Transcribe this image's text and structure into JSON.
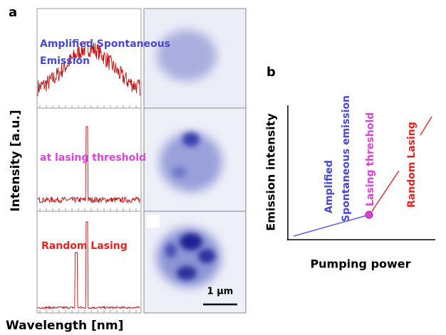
{
  "panel_a": {
    "label": "a",
    "y_axis_label": "Intensity [a.u.]",
    "x_axis_label": "Wavelength [nm]",
    "spectra": [
      {
        "label_lines": [
          "Amplified Spontaneous",
          "Emission"
        ]
      },
      {
        "label": "at lasing threshold"
      },
      {
        "label": "Random Lasing"
      }
    ],
    "scale_bar": "1 µm"
  },
  "panel_b": {
    "label": "b",
    "y_axis_label": "Emission intensity",
    "x_axis_label": "Pumping power",
    "annotations": {
      "ase": [
        "Amplified",
        "Spontaneous emission"
      ],
      "threshold": "Lasing threshold",
      "lasing": "Random Lasing"
    }
  }
}
